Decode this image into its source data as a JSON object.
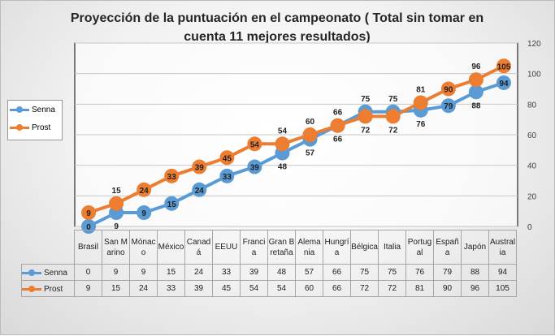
{
  "chart_data": {
    "type": "line",
    "title": "Proyección de la puntuación en el campeonato ( Total sin tomar en cuenta 11 mejores resultados)",
    "categories": [
      "Brasil",
      "San Marino",
      "Mónaco",
      "México",
      "Canadá",
      "EEUU",
      "Francia",
      "Gran Bretaña",
      "Alemania",
      "Hungría",
      "Bélgica",
      "Italia",
      "Portugal",
      "España",
      "Japón",
      "Australia"
    ],
    "series": [
      {
        "name": "Senna",
        "color": "#5B9BD5",
        "values": [
          0,
          9,
          9,
          15,
          24,
          33,
          39,
          48,
          57,
          66,
          75,
          75,
          76,
          79,
          88,
          94
        ]
      },
      {
        "name": "Prost",
        "color": "#ED7D31",
        "values": [
          9,
          15,
          24,
          33,
          39,
          45,
          54,
          54,
          60,
          66,
          72,
          72,
          81,
          90,
          96,
          105
        ]
      }
    ],
    "ylim": [
      0,
      120
    ],
    "yticks": [
      0,
      20,
      40,
      60,
      80,
      100,
      120
    ],
    "y_axis_position": "right",
    "grid": true,
    "legend": "left",
    "data_table": true,
    "data_labels": true
  }
}
